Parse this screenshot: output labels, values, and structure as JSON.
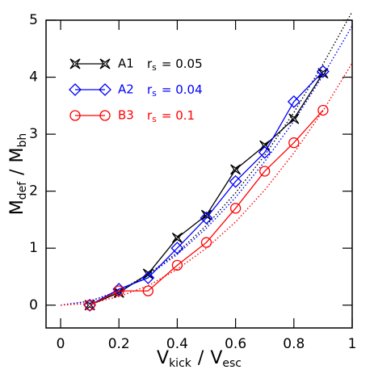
{
  "chart_data": {
    "type": "line",
    "x": [
      0.1,
      0.2,
      0.3,
      0.4,
      0.5,
      0.6,
      0.7,
      0.8,
      0.9
    ],
    "series": [
      {
        "name": "A1",
        "color": "#000000",
        "marker": "star",
        "param": "r",
        "param_sub": "s",
        "param_value": "= 0.05",
        "values": [
          0,
          0.22,
          0.55,
          1.18,
          1.58,
          2.38,
          2.8,
          3.27,
          4.07
        ]
      },
      {
        "name": "A2",
        "color": "#0000ff",
        "marker": "diamond",
        "param": "r",
        "param_sub": "s",
        "param_value": "= 0.04",
        "values": [
          0,
          0.28,
          0.48,
          1.0,
          1.53,
          2.17,
          2.68,
          3.57,
          4.1
        ]
      },
      {
        "name": "B3",
        "color": "#ff0000",
        "marker": "circle",
        "param": "r",
        "param_sub": "s",
        "param_value": "= 0.1",
        "values": [
          0,
          0.25,
          0.25,
          0.7,
          1.1,
          1.7,
          2.35,
          2.85,
          3.42
        ]
      }
    ],
    "fits": [
      {
        "color": "#000000",
        "x": [
          0,
          0.1,
          0.2,
          0.3,
          0.4,
          0.5,
          0.6,
          0.7,
          0.8,
          0.9,
          1
        ],
        "values": [
          0,
          0.07,
          0.25,
          0.54,
          0.92,
          1.4,
          1.97,
          2.63,
          3.38,
          4.23,
          5.15
        ]
      },
      {
        "color": "#0000ff",
        "x": [
          0,
          0.1,
          0.2,
          0.3,
          0.4,
          0.5,
          0.6,
          0.7,
          0.8,
          0.9,
          1
        ],
        "values": [
          0,
          0.07,
          0.24,
          0.52,
          0.89,
          1.35,
          1.89,
          2.52,
          3.23,
          4.03,
          4.9
        ]
      },
      {
        "color": "#ff0000",
        "x": [
          0,
          0.1,
          0.2,
          0.3,
          0.4,
          0.5,
          0.6,
          0.7,
          0.8,
          0.9,
          1
        ],
        "values": [
          0,
          0.03,
          0.15,
          0.34,
          0.63,
          1.0,
          1.46,
          2.02,
          2.67,
          3.41,
          4.25
        ]
      }
    ],
    "xlabel": [
      {
        "text": "V",
        "sub": "kick"
      },
      {
        "text": "/"
      },
      {
        "text": "V",
        "sub": "esc"
      }
    ],
    "ylabel": [
      {
        "text": "M",
        "sub": "def"
      },
      {
        "text": "/"
      },
      {
        "text": "M",
        "sub": "bh"
      }
    ],
    "xlim": [
      -0.05,
      1
    ],
    "ylim": [
      -0.4,
      5
    ],
    "xticks": [
      0,
      0.2,
      0.4,
      0.6,
      0.8,
      1
    ],
    "yticks": [
      0,
      1,
      2,
      3,
      4,
      5
    ],
    "legend": "upper left"
  }
}
